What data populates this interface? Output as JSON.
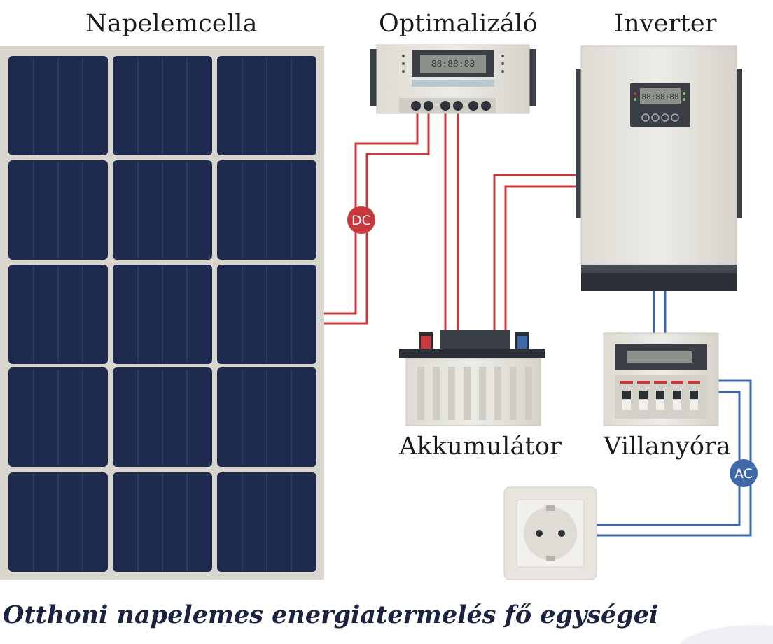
{
  "labels": {
    "panel": "Napelemcella",
    "optimizer": "Optimalizáló",
    "inverter": "Inverter",
    "battery": "Akkumulátor",
    "meter": "Villanyóra"
  },
  "badges": {
    "dc": "DC",
    "ac": "AC"
  },
  "displays": {
    "optimizer": "88:88:88",
    "inverter": "88:88:88"
  },
  "caption": "Otthoni napelemes energiatermelés fő egységei",
  "colors": {
    "panel_cell": "#1f2a4f",
    "panel_frame": "#d8d5cc",
    "dc_wire": "#c8383c",
    "ac_wire": "#3e68a8",
    "device_body": "#e4e1da",
    "device_dark": "#2b2f36",
    "caption": "#1b2340"
  }
}
